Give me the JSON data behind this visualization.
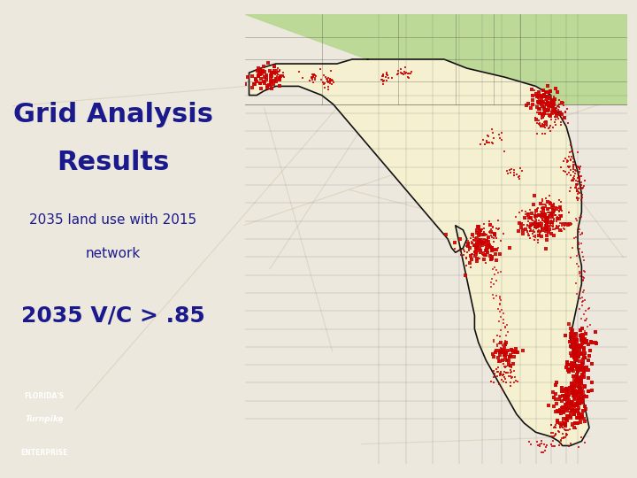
{
  "title_line1": "Grid Analysis",
  "title_line2": "Results",
  "subtitle_line1": "2035 land use with 2015",
  "subtitle_line2": "network",
  "big_label": "2035 V/C > .85",
  "title_color": "#1a1a8c",
  "subtitle_color": "#1a1a8c",
  "big_label_color": "#1a1a8c",
  "bg_color": "#ede8de",
  "map_bg_water": "#aacce0",
  "map_bg_land": "#f5f0d0",
  "map_north_green": "#b8d890",
  "florida_fill": "#f5f0d0",
  "florida_outline": "#111111",
  "county_line_color": "#555555",
  "red_spot_color": "#cc0000",
  "logo_bg": "#2e7d52",
  "title_fontsize": 22,
  "subtitle_fontsize": 11,
  "big_label_fontsize": 18
}
